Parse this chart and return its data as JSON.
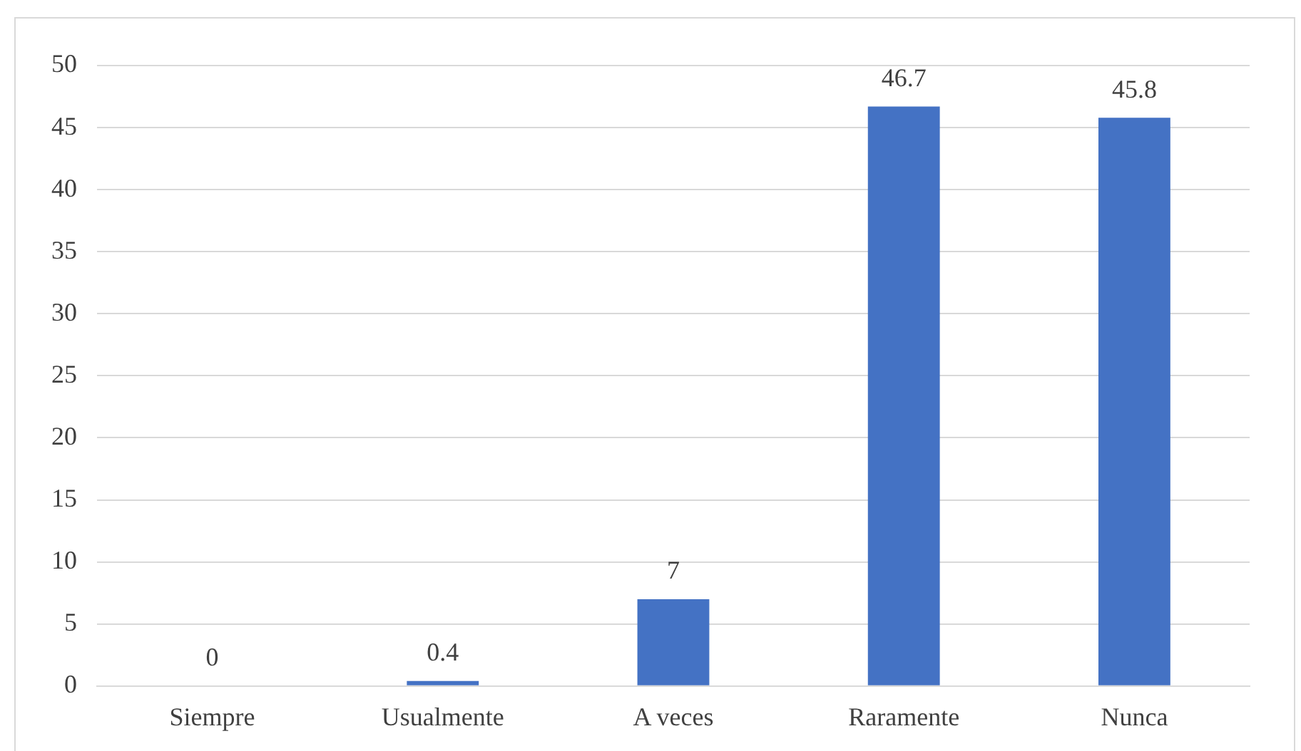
{
  "chart_data": {
    "type": "bar",
    "categories": [
      "Siempre",
      "Usualmente",
      "A veces",
      "Raramente",
      "Nunca"
    ],
    "values": [
      0,
      0.4,
      7,
      46.7,
      45.8
    ],
    "color": "#4472c4",
    "ylim": [
      0,
      50
    ],
    "yticks": [
      0,
      5,
      10,
      15,
      20,
      25,
      30,
      35,
      40,
      45,
      50
    ],
    "grid": "y",
    "data_labels": true
  }
}
